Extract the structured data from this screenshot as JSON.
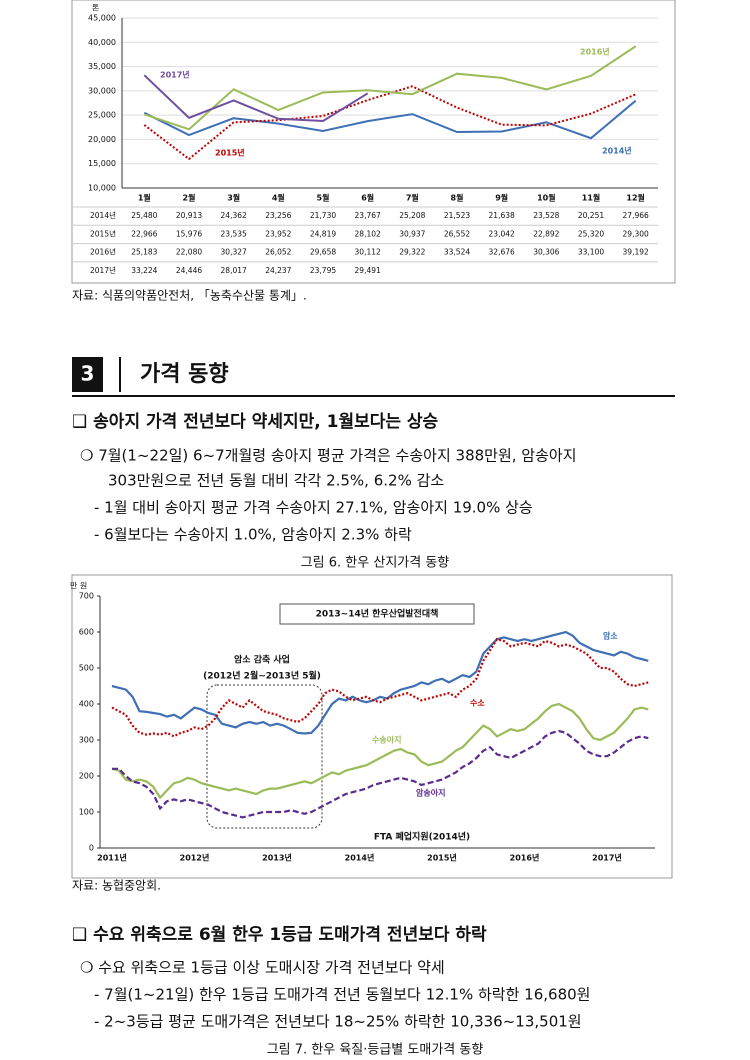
{
  "chart_data": [
    {
      "type": "line",
      "y_unit": "톤",
      "categories": [
        "1월",
        "2월",
        "3월",
        "4월",
        "5월",
        "6월",
        "7월",
        "8월",
        "9월",
        "10월",
        "11월",
        "12월"
      ],
      "series": [
        {
          "name": "2014년",
          "color": "#3f6fb5",
          "style": "solid",
          "values": [
            25480,
            20913,
            24362,
            23256,
            21730,
            23767,
            25208,
            21523,
            21638,
            23528,
            20251,
            27966
          ],
          "value_labels": [
            "25,480",
            "20,913",
            "24,362",
            "23,256",
            "21,730",
            "23,767",
            "25,208",
            "21,523",
            "21,638",
            "23,528",
            "20,251",
            "27,966"
          ]
        },
        {
          "name": "2015년",
          "color": "#c00000",
          "style": "dotted",
          "values": [
            22966,
            15976,
            23535,
            23952,
            24819,
            28102,
            30937,
            26552,
            23042,
            22892,
            25320,
            29300
          ],
          "value_labels": [
            "22,966",
            "15,976",
            "23,535",
            "23,952",
            "24,819",
            "28,102",
            "30,937",
            "26,552",
            "23,042",
            "22,892",
            "25,320",
            "29,300"
          ]
        },
        {
          "name": "2016년",
          "color": "#9bbb59",
          "style": "solid",
          "values": [
            25183,
            22080,
            30327,
            26052,
            29658,
            30112,
            29322,
            33524,
            32676,
            30306,
            33100,
            39192
          ],
          "value_labels": [
            "25,183",
            "22,080",
            "30,327",
            "26,052",
            "29,658",
            "30,112",
            "29,322",
            "33,524",
            "32,676",
            "30,306",
            "33,100",
            "39,192"
          ]
        },
        {
          "name": "2017년",
          "color": "#6f4f9f",
          "style": "solid",
          "values": [
            33224,
            24446,
            28017,
            24237,
            23795,
            29491,
            null,
            null,
            null,
            null,
            null,
            null
          ],
          "value_labels": [
            "33,224",
            "24,446",
            "28,017",
            "24,237",
            "23,795",
            "29,491",
            null,
            null,
            null,
            null,
            null,
            null
          ]
        }
      ],
      "ylim": [
        10000,
        45000
      ],
      "yticks": [
        {
          "value": 10000,
          "label": "10,000"
        },
        {
          "value": 15000,
          "label": "15,000"
        },
        {
          "value": 20000,
          "label": "20,000"
        },
        {
          "value": 25000,
          "label": "25,000"
        },
        {
          "value": 30000,
          "label": "30,000"
        },
        {
          "value": 35000,
          "label": "35,000"
        },
        {
          "value": 40000,
          "label": "40,000"
        },
        {
          "value": 45000,
          "label": "45,000"
        }
      ],
      "grid": true
    },
    {
      "type": "line",
      "y_unit": "만 원",
      "categories": [
        "2011년",
        null,
        null,
        null,
        null,
        null,
        null,
        null,
        null,
        null,
        null,
        null,
        "2012년",
        null,
        null,
        null,
        null,
        null,
        null,
        null,
        null,
        null,
        null,
        null,
        "2013년",
        null,
        null,
        null,
        null,
        null,
        null,
        null,
        null,
        null,
        null,
        null,
        "2014년",
        null,
        null,
        null,
        null,
        null,
        null,
        null,
        null,
        null,
        null,
        null,
        "2015년",
        null,
        null,
        null,
        null,
        null,
        null,
        null,
        null,
        null,
        null,
        null,
        "2016년",
        null,
        null,
        null,
        null,
        null,
        null,
        null,
        null,
        null,
        null,
        null,
        "2017년",
        null,
        null,
        null,
        null,
        null,
        null
      ],
      "series": [
        {
          "name": "암소",
          "color": "#3f6fb5",
          "style": "solid",
          "values": [
            450,
            445,
            440,
            420,
            380,
            378,
            375,
            372,
            365,
            370,
            360,
            375,
            390,
            385,
            375,
            370,
            345,
            340,
            335,
            345,
            350,
            345,
            350,
            340,
            345,
            340,
            330,
            320,
            318,
            320,
            340,
            370,
            400,
            415,
            410,
            420,
            410,
            405,
            410,
            420,
            415,
            430,
            440,
            445,
            450,
            460,
            455,
            465,
            470,
            460,
            470,
            480,
            475,
            490,
            540,
            560,
            580,
            585,
            580,
            575,
            580,
            575,
            580,
            585,
            590,
            595,
            600,
            590,
            570,
            560,
            550,
            545,
            540,
            535,
            545,
            540,
            530,
            525,
            520
          ]
        },
        {
          "name": "수소",
          "color": "#c00000",
          "style": "dotted",
          "values": [
            390,
            380,
            370,
            340,
            320,
            315,
            318,
            315,
            320,
            310,
            320,
            325,
            335,
            330,
            340,
            360,
            390,
            410,
            400,
            390,
            410,
            395,
            380,
            375,
            370,
            360,
            355,
            350,
            360,
            380,
            400,
            430,
            440,
            435,
            420,
            410,
            415,
            420,
            410,
            405,
            415,
            420,
            425,
            430,
            420,
            410,
            415,
            420,
            425,
            430,
            420,
            440,
            450,
            470,
            520,
            550,
            580,
            575,
            560,
            565,
            570,
            565,
            560,
            575,
            570,
            560,
            565,
            560,
            550,
            540,
            520,
            500,
            500,
            490,
            470,
            455,
            450,
            455,
            460
          ]
        },
        {
          "name": "수송아지",
          "color": "#9bbb59",
          "style": "solid",
          "values": [
            220,
            215,
            190,
            185,
            190,
            185,
            170,
            140,
            160,
            180,
            185,
            195,
            190,
            180,
            175,
            170,
            165,
            160,
            165,
            160,
            155,
            150,
            160,
            165,
            165,
            170,
            175,
            180,
            185,
            180,
            190,
            200,
            210,
            205,
            215,
            220,
            225,
            230,
            240,
            250,
            260,
            270,
            275,
            265,
            260,
            240,
            230,
            235,
            240,
            255,
            270,
            280,
            300,
            320,
            340,
            330,
            310,
            320,
            330,
            325,
            330,
            345,
            360,
            380,
            395,
            400,
            390,
            380,
            360,
            330,
            305,
            300,
            310,
            320,
            340,
            360,
            385,
            390,
            385
          ]
        },
        {
          "name": "암송아지",
          "color": "#5b2c8f",
          "style": "dashed",
          "values": [
            220,
            220,
            200,
            185,
            180,
            170,
            150,
            110,
            130,
            135,
            130,
            135,
            130,
            125,
            120,
            110,
            100,
            95,
            90,
            85,
            90,
            95,
            100,
            100,
            100,
            100,
            105,
            100,
            95,
            100,
            110,
            120,
            130,
            140,
            150,
            155,
            160,
            165,
            175,
            180,
            185,
            190,
            195,
            190,
            185,
            175,
            180,
            185,
            190,
            200,
            210,
            225,
            235,
            250,
            270,
            280,
            260,
            255,
            250,
            260,
            270,
            280,
            290,
            310,
            320,
            325,
            320,
            305,
            290,
            270,
            260,
            255,
            255,
            265,
            280,
            295,
            305,
            310,
            305
          ]
        }
      ],
      "ylim": [
        0,
        700
      ],
      "yticks": [
        0,
        100,
        200,
        300,
        400,
        500,
        600,
        700
      ],
      "grid": false,
      "annotations": [
        "2013~14년 한우산업발전대책",
        "암소 감축 사업",
        "(2012년 2월~2013년 5월)",
        "FTA 폐업지원(2014년)"
      ]
    }
  ],
  "sources": [
    "자료: 식품의약품안전처, 「농축수산물 통계」.",
    "자료: 농협중앙회."
  ],
  "section": {
    "number": "3",
    "title": "가격 동향"
  },
  "headings": [
    "❑ 송아지 가격 전년보다 약세지만, 1월보다는 상승",
    "❑ 수요 위축으로 6월 한우 1등급 도매가격 전년보다 하락"
  ],
  "paragraphs1": [
    "❍ 7월(1~22일) 6~7개월령 송아지 평균 가격은 수송아지 388만원, 암송아지",
    "303만원으로 전년 동월 대비 각각 2.5%, 6.2% 감소",
    "- 1월 대비 송아지 평균 가격 수송아지 27.1%, 암송아지 19.0% 상승",
    "- 6월보다는 수송아지 1.0%, 암송아지 2.3% 하락"
  ],
  "paragraphs2": [
    "❍ 수요 위축으로 1등급 이상 도매시장 가격 전년보다 약세",
    "- 7월(1~21일) 한우 1등급 도매가격 전년 동월보다 12.1% 하락한 16,680원",
    "- 2~3등급 평균 도매가격은 전년보다 18~25% 하락한 10,336~13,501원"
  ],
  "captions": [
    "그림 6. 한우 산지가격 동향",
    "그림 7. 한우 육질·등급별 도매가격 동향"
  ]
}
